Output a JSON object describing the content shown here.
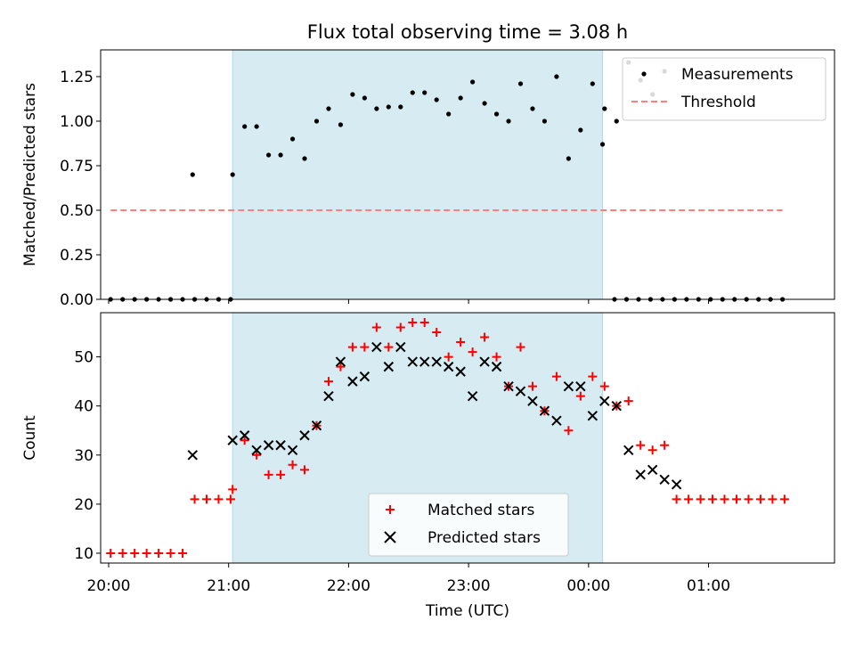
{
  "chart_data": [
    {
      "type": "scatter",
      "title": "Flux total observing time = 3.08 h",
      "xlabel": "",
      "ylabel": "Matched/Predicted stars",
      "ylim": [
        0,
        1.4
      ],
      "xlim": [
        "19:56",
        "02:03"
      ],
      "yticks": [
        "0.00",
        "0.25",
        "0.50",
        "0.75",
        "1.00",
        "1.25"
      ],
      "shaded_region": {
        "start": "21:02",
        "end": "00:07",
        "color": "#add8e6"
      },
      "legend_position": "upper right",
      "series": [
        {
          "name": "Measurements",
          "marker": "dot",
          "color": "#000000",
          "points": [
            [
              "20:01",
              0
            ],
            [
              "20:07",
              0
            ],
            [
              "20:13",
              0
            ],
            [
              "20:19",
              0
            ],
            [
              "20:25",
              0
            ],
            [
              "20:31",
              0
            ],
            [
              "20:37",
              0
            ],
            [
              "20:43",
              0
            ],
            [
              "20:49",
              0
            ],
            [
              "20:55",
              0
            ],
            [
              "21:01",
              0
            ],
            [
              "20:42",
              0.7
            ],
            [
              "21:02",
              0.7
            ],
            [
              "21:08",
              0.97
            ],
            [
              "21:14",
              0.97
            ],
            [
              "21:20",
              0.81
            ],
            [
              "21:26",
              0.81
            ],
            [
              "21:32",
              0.9
            ],
            [
              "21:38",
              0.79
            ],
            [
              "21:44",
              1.0
            ],
            [
              "21:50",
              1.07
            ],
            [
              "21:56",
              0.98
            ],
            [
              "22:02",
              1.15
            ],
            [
              "22:08",
              1.13
            ],
            [
              "22:14",
              1.07
            ],
            [
              "22:20",
              1.08
            ],
            [
              "22:26",
              1.08
            ],
            [
              "22:32",
              1.16
            ],
            [
              "22:38",
              1.16
            ],
            [
              "22:44",
              1.12
            ],
            [
              "22:50",
              1.04
            ],
            [
              "22:56",
              1.13
            ],
            [
              "23:02",
              1.22
            ],
            [
              "23:08",
              1.1
            ],
            [
              "23:14",
              1.04
            ],
            [
              "23:20",
              1.0
            ],
            [
              "23:26",
              1.21
            ],
            [
              "23:32",
              1.07
            ],
            [
              "23:38",
              1.0
            ],
            [
              "23:44",
              1.25
            ],
            [
              "23:50",
              0.79
            ],
            [
              "23:56",
              0.95
            ],
            [
              "00:02",
              1.21
            ],
            [
              "00:08",
              1.07
            ],
            [
              "00:14",
              1.0
            ],
            [
              "00:20",
              1.33
            ],
            [
              "00:26",
              1.23
            ],
            [
              "00:32",
              1.15
            ],
            [
              "00:38",
              1.28
            ],
            [
              "00:07",
              0.87
            ],
            [
              "00:13",
              0
            ],
            [
              "00:19",
              0
            ],
            [
              "00:25",
              0
            ],
            [
              "00:31",
              0
            ],
            [
              "00:37",
              0
            ],
            [
              "00:43",
              0
            ],
            [
              "00:49",
              0
            ],
            [
              "00:55",
              0
            ],
            [
              "01:01",
              0
            ],
            [
              "01:07",
              0
            ],
            [
              "01:13",
              0
            ],
            [
              "01:19",
              0
            ],
            [
              "01:25",
              0
            ],
            [
              "01:31",
              0
            ],
            [
              "01:37",
              0
            ]
          ]
        },
        {
          "name": "Threshold",
          "style": "dashed",
          "color": "#ff7f7f",
          "points": [
            [
              "20:01",
              0.5
            ],
            [
              "01:37",
              0.5
            ]
          ]
        }
      ]
    },
    {
      "type": "scatter",
      "title": "",
      "xlabel": "Time (UTC)",
      "ylabel": "Count",
      "ylim": [
        8,
        59
      ],
      "xlim": [
        "19:56",
        "02:03"
      ],
      "yticks": [
        "10",
        "20",
        "30",
        "40",
        "50"
      ],
      "xticks": [
        "20:00",
        "21:00",
        "22:00",
        "23:00",
        "00:00",
        "01:00"
      ],
      "shaded_region": {
        "start": "21:02",
        "end": "00:07",
        "color": "#add8e6"
      },
      "legend_position": "lower center",
      "series": [
        {
          "name": "Matched stars",
          "marker": "plus",
          "color": "#ff0000",
          "points": [
            [
              "20:01",
              10
            ],
            [
              "20:07",
              10
            ],
            [
              "20:13",
              10
            ],
            [
              "20:19",
              10
            ],
            [
              "20:25",
              10
            ],
            [
              "20:31",
              10
            ],
            [
              "20:37",
              10
            ],
            [
              "20:43",
              21
            ],
            [
              "20:49",
              21
            ],
            [
              "20:55",
              21
            ],
            [
              "21:01",
              21
            ],
            [
              "21:02",
              23
            ],
            [
              "21:08",
              33
            ],
            [
              "21:14",
              30
            ],
            [
              "21:20",
              26
            ],
            [
              "21:26",
              26
            ],
            [
              "21:32",
              28
            ],
            [
              "21:38",
              27
            ],
            [
              "21:44",
              36
            ],
            [
              "21:50",
              45
            ],
            [
              "21:56",
              48
            ],
            [
              "22:02",
              52
            ],
            [
              "22:08",
              52
            ],
            [
              "22:14",
              56
            ],
            [
              "22:20",
              52
            ],
            [
              "22:26",
              56
            ],
            [
              "22:32",
              57
            ],
            [
              "22:38",
              57
            ],
            [
              "22:44",
              55
            ],
            [
              "22:50",
              50
            ],
            [
              "22:56",
              53
            ],
            [
              "23:02",
              51
            ],
            [
              "23:08",
              54
            ],
            [
              "23:14",
              50
            ],
            [
              "23:20",
              44
            ],
            [
              "23:26",
              52
            ],
            [
              "23:32",
              44
            ],
            [
              "23:38",
              39
            ],
            [
              "23:44",
              46
            ],
            [
              "23:50",
              35
            ],
            [
              "23:56",
              42
            ],
            [
              "00:02",
              46
            ],
            [
              "00:08",
              44
            ],
            [
              "00:14",
              40
            ],
            [
              "00:20",
              41
            ],
            [
              "00:26",
              32
            ],
            [
              "00:32",
              31
            ],
            [
              "00:38",
              32
            ],
            [
              "00:44",
              21
            ],
            [
              "00:50",
              21
            ],
            [
              "00:56",
              21
            ],
            [
              "01:02",
              21
            ],
            [
              "01:08",
              21
            ],
            [
              "01:14",
              21
            ],
            [
              "01:20",
              21
            ],
            [
              "01:26",
              21
            ],
            [
              "01:32",
              21
            ],
            [
              "01:38",
              21
            ]
          ]
        },
        {
          "name": "Predicted stars",
          "marker": "x",
          "color": "#000000",
          "points": [
            [
              "20:42",
              30
            ],
            [
              "21:02",
              33
            ],
            [
              "21:08",
              34
            ],
            [
              "21:14",
              31
            ],
            [
              "21:20",
              32
            ],
            [
              "21:26",
              32
            ],
            [
              "21:32",
              31
            ],
            [
              "21:38",
              34
            ],
            [
              "21:44",
              36
            ],
            [
              "21:50",
              42
            ],
            [
              "21:56",
              49
            ],
            [
              "22:02",
              45
            ],
            [
              "22:08",
              46
            ],
            [
              "22:14",
              52
            ],
            [
              "22:20",
              48
            ],
            [
              "22:26",
              52
            ],
            [
              "22:32",
              49
            ],
            [
              "22:38",
              49
            ],
            [
              "22:44",
              49
            ],
            [
              "22:50",
              48
            ],
            [
              "22:56",
              47
            ],
            [
              "23:02",
              42
            ],
            [
              "23:08",
              49
            ],
            [
              "23:14",
              48
            ],
            [
              "23:20",
              44
            ],
            [
              "23:26",
              43
            ],
            [
              "23:32",
              41
            ],
            [
              "23:38",
              39
            ],
            [
              "23:44",
              37
            ],
            [
              "23:50",
              44
            ],
            [
              "23:56",
              44
            ],
            [
              "00:02",
              38
            ],
            [
              "00:08",
              41
            ],
            [
              "00:14",
              40
            ],
            [
              "00:20",
              31
            ],
            [
              "00:26",
              26
            ],
            [
              "00:32",
              27
            ],
            [
              "00:38",
              25
            ],
            [
              "00:44",
              24
            ]
          ]
        }
      ]
    }
  ]
}
